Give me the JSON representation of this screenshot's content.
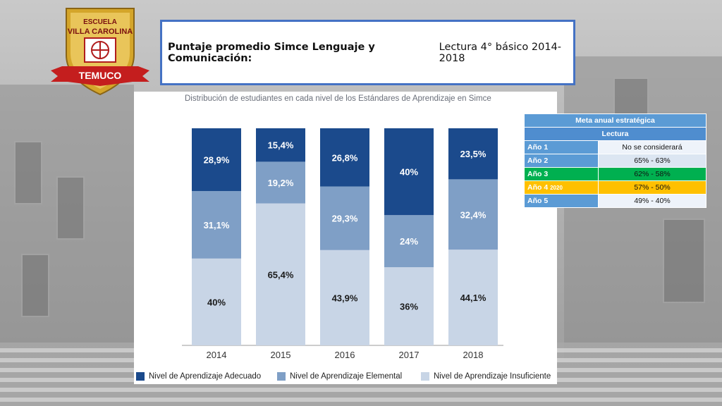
{
  "logo": {
    "top_text": "ESCUELA",
    "name": "VILLA CAROLINA",
    "city": "TEMUCO"
  },
  "header": {
    "title_bold": "Puntaje promedio Simce Lenguaje y Comunicación:",
    "title_normal": "Lectura 4° básico 2014-2018"
  },
  "chart_data": {
    "type": "bar",
    "stacked": true,
    "title": "Distribución de estudiantes en cada nivel de los Estándares de Aprendizaje en Simce",
    "categories": [
      "2014",
      "2015",
      "2016",
      "2017",
      "2018"
    ],
    "series": [
      {
        "name": "Nivel de Aprendizaje Insuficiente",
        "color": "#c8d5e6",
        "values": [
          40,
          65.4,
          43.9,
          36,
          44.1
        ],
        "labels": [
          "40%",
          "65,4%",
          "43,9%",
          "36%",
          "44,1%"
        ],
        "label_color": "#1a1a1a"
      },
      {
        "name": "Nivel de Aprendizaje Elemental",
        "color": "#7f9fc6",
        "values": [
          31.1,
          19.2,
          29.3,
          24,
          32.4
        ],
        "labels": [
          "31,1%",
          "19,2%",
          "29,3%",
          "24%",
          "32,4%"
        ],
        "label_color": "#ffffff"
      },
      {
        "name": "Nivel de Aprendizaje Adecuado",
        "color": "#1b4a8c",
        "values": [
          28.9,
          15.4,
          26.8,
          40,
          23.5
        ],
        "labels": [
          "28,9%",
          "15,4%",
          "26,8%",
          "40%",
          "23,5%"
        ],
        "label_color": "#ffffff"
      }
    ],
    "ylim": [
      0,
      100
    ],
    "legend": [
      "Nivel de Aprendizaje Adecuado",
      "Nivel de Aprendizaje Elemental",
      "Nivel de Aprendizaje Insuficiente"
    ],
    "legend_position": "bottom"
  },
  "goals": {
    "title": "Meta anual estratégica",
    "subtitle": "Lectura",
    "rows": [
      {
        "label": "Año 1",
        "suffix": "",
        "value": "No se considerará"
      },
      {
        "label": "Año 2",
        "suffix": "",
        "value": "65% - 63%"
      },
      {
        "label": "Año 3",
        "suffix": "",
        "value": "62% - 58%"
      },
      {
        "label": "Año 4",
        "suffix": "2020",
        "value": "57% - 50%"
      },
      {
        "label": "Año 5",
        "suffix": "",
        "value": "49% - 40%"
      }
    ]
  }
}
